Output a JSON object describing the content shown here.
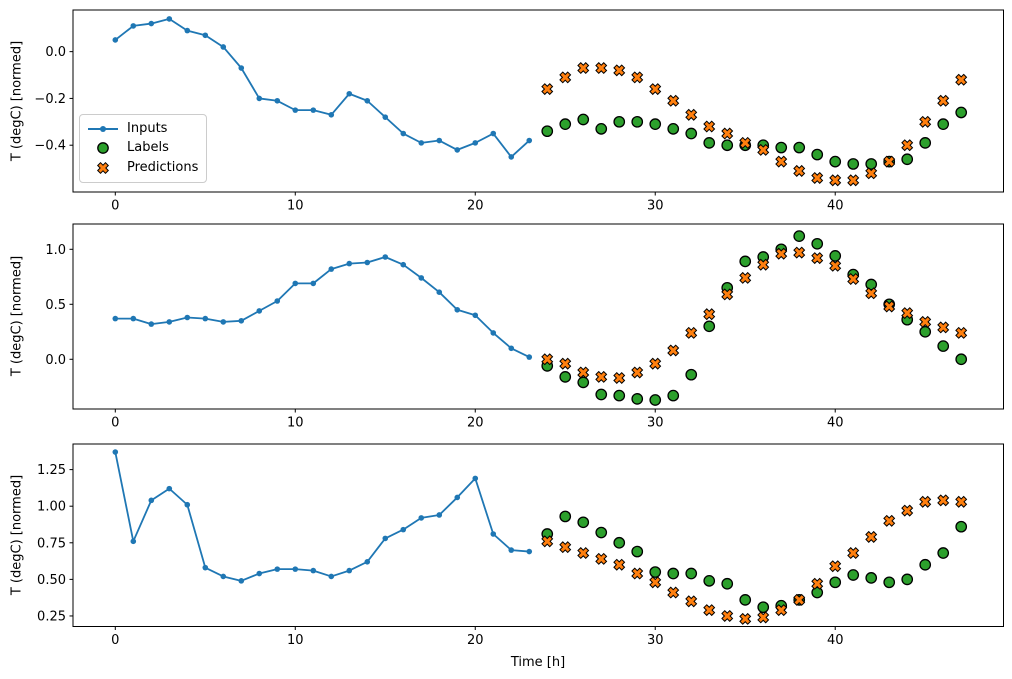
{
  "figure": {
    "background": "#ffffff",
    "xlabel": "Time [h]",
    "legend": {
      "position": "upper left",
      "items": [
        {
          "label": "Inputs",
          "marker": "line-dot-icon",
          "color": "#1f77b4"
        },
        {
          "label": "Labels",
          "marker": "circle-icon",
          "color": "#2ca02c"
        },
        {
          "label": "Predictions",
          "marker": "x-icon",
          "color": "#ff7f0e"
        }
      ]
    },
    "colors": {
      "inputs": "#1f77b4",
      "labels": "#2ca02c",
      "predictions": "#ff7f0e",
      "marker_edge": "#000000",
      "axis": "#000000",
      "text": "#000000",
      "legend_border": "#cccccc"
    }
  },
  "chart_data": [
    {
      "type": "line",
      "subplot": 1,
      "title": "",
      "xlabel": "",
      "ylabel": "T (degC) [normed]",
      "grid": false,
      "xlim": [
        -2.35,
        49.35
      ],
      "ylim": [
        -0.6,
        0.178
      ],
      "xticks": [
        {
          "value": 0,
          "label": "0"
        },
        {
          "value": 10,
          "label": "10"
        },
        {
          "value": 20,
          "label": "20"
        },
        {
          "value": 30,
          "label": "30"
        },
        {
          "value": 40,
          "label": "40"
        }
      ],
      "yticks": [
        {
          "value": 0.0,
          "label": "0.0"
        },
        {
          "value": -0.2,
          "label": "−0.2"
        },
        {
          "value": -0.4,
          "label": "−0.4"
        }
      ],
      "series": [
        {
          "name": "Inputs",
          "style": "line-with-dots",
          "x": [
            0,
            1,
            2,
            3,
            4,
            5,
            6,
            7,
            8,
            9,
            10,
            11,
            12,
            13,
            14,
            15,
            16,
            17,
            18,
            19,
            20,
            21,
            22,
            23
          ],
          "values": [
            0.05,
            0.11,
            0.12,
            0.14,
            0.09,
            0.07,
            0.02,
            -0.07,
            -0.2,
            -0.21,
            -0.25,
            -0.25,
            -0.27,
            -0.18,
            -0.21,
            -0.28,
            -0.35,
            -0.39,
            -0.38,
            -0.42,
            -0.39,
            -0.35,
            -0.45,
            -0.38
          ]
        },
        {
          "name": "Labels",
          "style": "scatter-circle",
          "x": [
            24,
            25,
            26,
            27,
            28,
            29,
            30,
            31,
            32,
            33,
            34,
            35,
            36,
            37,
            38,
            39,
            40,
            41,
            42,
            43,
            44,
            45,
            46,
            47
          ],
          "values": [
            -0.34,
            -0.31,
            -0.29,
            -0.33,
            -0.3,
            -0.3,
            -0.31,
            -0.33,
            -0.35,
            -0.39,
            -0.4,
            -0.4,
            -0.4,
            -0.41,
            -0.41,
            -0.44,
            -0.47,
            -0.48,
            -0.48,
            -0.47,
            -0.46,
            -0.39,
            -0.31,
            -0.26
          ]
        },
        {
          "name": "Predictions",
          "style": "scatter-x",
          "x": [
            24,
            25,
            26,
            27,
            28,
            29,
            30,
            31,
            32,
            33,
            34,
            35,
            36,
            37,
            38,
            39,
            40,
            41,
            42,
            43,
            44,
            45,
            46,
            47
          ],
          "values": [
            -0.16,
            -0.11,
            -0.07,
            -0.07,
            -0.08,
            -0.11,
            -0.16,
            -0.21,
            -0.27,
            -0.32,
            -0.35,
            -0.39,
            -0.42,
            -0.47,
            -0.51,
            -0.54,
            -0.55,
            -0.55,
            -0.52,
            -0.47,
            -0.4,
            -0.3,
            -0.21,
            -0.12
          ]
        }
      ]
    },
    {
      "type": "line",
      "subplot": 2,
      "title": "",
      "xlabel": "",
      "ylabel": "T (degC) [normed]",
      "grid": false,
      "xlim": [
        -2.35,
        49.35
      ],
      "ylim": [
        -0.452,
        1.23
      ],
      "xticks": [
        {
          "value": 0,
          "label": "0"
        },
        {
          "value": 10,
          "label": "10"
        },
        {
          "value": 20,
          "label": "20"
        },
        {
          "value": 30,
          "label": "30"
        },
        {
          "value": 40,
          "label": "40"
        }
      ],
      "yticks": [
        {
          "value": 1.0,
          "label": "1.0"
        },
        {
          "value": 0.5,
          "label": "0.5"
        },
        {
          "value": 0.0,
          "label": "0.0"
        }
      ],
      "series": [
        {
          "name": "Inputs",
          "style": "line-with-dots",
          "x": [
            0,
            1,
            2,
            3,
            4,
            5,
            6,
            7,
            8,
            9,
            10,
            11,
            12,
            13,
            14,
            15,
            16,
            17,
            18,
            19,
            20,
            21,
            22,
            23
          ],
          "values": [
            0.37,
            0.37,
            0.32,
            0.34,
            0.38,
            0.37,
            0.34,
            0.35,
            0.44,
            0.53,
            0.69,
            0.69,
            0.82,
            0.87,
            0.88,
            0.93,
            0.86,
            0.74,
            0.61,
            0.45,
            0.4,
            0.24,
            0.1,
            0.02
          ]
        },
        {
          "name": "Labels",
          "style": "scatter-circle",
          "x": [
            24,
            25,
            26,
            27,
            28,
            29,
            30,
            31,
            32,
            33,
            34,
            35,
            36,
            37,
            38,
            39,
            40,
            41,
            42,
            43,
            44,
            45,
            46,
            47
          ],
          "values": [
            -0.06,
            -0.16,
            -0.21,
            -0.32,
            -0.33,
            -0.36,
            -0.37,
            -0.33,
            -0.14,
            0.3,
            0.65,
            0.89,
            0.93,
            1.0,
            1.12,
            1.05,
            0.94,
            0.77,
            0.68,
            0.5,
            0.36,
            0.25,
            0.12,
            0.0
          ]
        },
        {
          "name": "Predictions",
          "style": "scatter-x",
          "x": [
            24,
            25,
            26,
            27,
            28,
            29,
            30,
            31,
            32,
            33,
            34,
            35,
            36,
            37,
            38,
            39,
            40,
            41,
            42,
            43,
            44,
            45,
            46,
            47
          ],
          "values": [
            0.0,
            -0.04,
            -0.12,
            -0.16,
            -0.17,
            -0.12,
            -0.04,
            0.08,
            0.24,
            0.41,
            0.59,
            0.74,
            0.86,
            0.96,
            0.97,
            0.92,
            0.85,
            0.73,
            0.6,
            0.48,
            0.42,
            0.34,
            0.29,
            0.24
          ]
        }
      ]
    },
    {
      "type": "line",
      "subplot": 3,
      "title": "",
      "xlabel": "Time [h]",
      "ylabel": "T (degC) [normed]",
      "grid": false,
      "xlim": [
        -2.35,
        49.35
      ],
      "ylim": [
        0.178,
        1.425
      ],
      "xticks": [
        {
          "value": 0,
          "label": "0"
        },
        {
          "value": 10,
          "label": "10"
        },
        {
          "value": 20,
          "label": "20"
        },
        {
          "value": 30,
          "label": "30"
        },
        {
          "value": 40,
          "label": "40"
        }
      ],
      "yticks": [
        {
          "value": 1.25,
          "label": "1.25"
        },
        {
          "value": 1.0,
          "label": "1.00"
        },
        {
          "value": 0.75,
          "label": "0.75"
        },
        {
          "value": 0.5,
          "label": "0.50"
        },
        {
          "value": 0.25,
          "label": "0.25"
        }
      ],
      "series": [
        {
          "name": "Inputs",
          "style": "line-with-dots",
          "x": [
            0,
            1,
            2,
            3,
            4,
            5,
            6,
            7,
            8,
            9,
            10,
            11,
            12,
            13,
            14,
            15,
            16,
            17,
            18,
            19,
            20,
            21,
            22,
            23
          ],
          "values": [
            1.37,
            0.76,
            1.04,
            1.12,
            1.01,
            0.58,
            0.52,
            0.49,
            0.54,
            0.57,
            0.57,
            0.56,
            0.52,
            0.56,
            0.62,
            0.78,
            0.84,
            0.92,
            0.94,
            1.06,
            1.19,
            0.81,
            0.7,
            0.69
          ]
        },
        {
          "name": "Labels",
          "style": "scatter-circle",
          "x": [
            24,
            25,
            26,
            27,
            28,
            29,
            30,
            31,
            32,
            33,
            34,
            35,
            36,
            37,
            38,
            39,
            40,
            41,
            42,
            43,
            44,
            45,
            46,
            47
          ],
          "values": [
            0.81,
            0.93,
            0.89,
            0.82,
            0.75,
            0.69,
            0.55,
            0.54,
            0.54,
            0.49,
            0.47,
            0.36,
            0.31,
            0.32,
            0.36,
            0.41,
            0.48,
            0.53,
            0.51,
            0.48,
            0.5,
            0.6,
            0.68,
            0.86
          ]
        },
        {
          "name": "Predictions",
          "style": "scatter-x",
          "x": [
            24,
            25,
            26,
            27,
            28,
            29,
            30,
            31,
            32,
            33,
            34,
            35,
            36,
            37,
            38,
            39,
            40,
            41,
            42,
            43,
            44,
            45,
            46,
            47
          ],
          "values": [
            0.76,
            0.72,
            0.68,
            0.64,
            0.6,
            0.54,
            0.48,
            0.41,
            0.35,
            0.29,
            0.25,
            0.23,
            0.24,
            0.29,
            0.36,
            0.47,
            0.59,
            0.68,
            0.79,
            0.9,
            0.97,
            1.03,
            1.04,
            1.03
          ]
        }
      ]
    }
  ]
}
